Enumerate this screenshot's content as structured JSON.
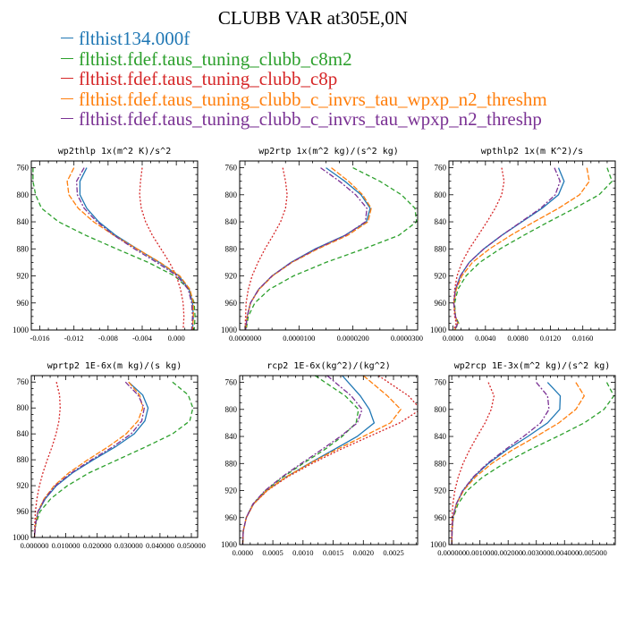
{
  "title": "CLUBB VAR at305E,0N",
  "legend": [
    {
      "name": "flthist134.000f",
      "color": "#1f77b4",
      "dash": ""
    },
    {
      "name": "flthist.fdef.taus_tuning_clubb_c8m2",
      "color": "#2ca02c",
      "dash": "5,3"
    },
    {
      "name": "flthist.fdef.taus_tuning_clubb_c8p",
      "color": "#d62728",
      "dash": "2,2"
    },
    {
      "name": "flthist.fdef.taus_tuning_clubb_c_invrs_tau_wpxp_n2_threshm",
      "color": "#ff7f0e",
      "dash": "6,2"
    },
    {
      "name": "flthist.fdef.taus_tuning_clubb_c_invrs_tau_wpxp_n2_threshp",
      "color": "#7b3294",
      "dash": "6,2,2,2"
    }
  ],
  "chart_data": [
    {
      "type": "line",
      "title": "wp2thlp   1x(m^2 K)/s^2",
      "xlim": [
        -0.017,
        0.0025
      ],
      "xticks": [
        -0.016,
        -0.012,
        -0.008,
        -0.004,
        0.0
      ],
      "xtick_labels": [
        "-0.016",
        "-0.012",
        "-0.008",
        "-0.004",
        "0.000"
      ],
      "ylim": [
        750,
        1000
      ],
      "yticks": [
        760,
        800,
        840,
        880,
        920,
        960,
        1000
      ],
      "y": [
        760,
        780,
        800,
        820,
        840,
        860,
        880,
        900,
        920,
        940,
        960,
        980,
        1000
      ],
      "series": [
        {
          "values": [
            -0.0105,
            -0.0113,
            -0.0113,
            -0.0105,
            -0.0091,
            -0.0071,
            -0.0046,
            -0.002,
            0.0003,
            0.0015,
            0.0019,
            0.002,
            0.0019
          ]
        },
        {
          "values": [
            -0.0168,
            -0.0168,
            -0.0165,
            -0.0158,
            -0.0138,
            -0.0106,
            -0.007,
            -0.0033,
            -0.0002,
            0.0015,
            0.0021,
            0.0022,
            0.0021
          ]
        },
        {
          "values": [
            -0.004,
            -0.0042,
            -0.0043,
            -0.0041,
            -0.0036,
            -0.0028,
            -0.0018,
            -0.0008,
            0.0,
            0.0005,
            0.0008,
            0.0009,
            0.0008
          ]
        },
        {
          "values": [
            -0.012,
            -0.0128,
            -0.0126,
            -0.0115,
            -0.0097,
            -0.0073,
            -0.0046,
            -0.0019,
            0.0004,
            0.0016,
            0.002,
            0.002,
            0.0019
          ]
        },
        {
          "values": [
            -0.0108,
            -0.0117,
            -0.0116,
            -0.0108,
            -0.0093,
            -0.0073,
            -0.0049,
            -0.0023,
            0.0001,
            0.0014,
            0.0018,
            0.0019,
            0.0018
          ]
        }
      ]
    },
    {
      "type": "line",
      "title": "wp2rtp   1x(m^2 kg)/(s^2 kg)",
      "xlim": [
        -1e-06,
        3.2e-05
      ],
      "xticks": [
        0.0,
        1e-05,
        2e-05,
        3e-05
      ],
      "xtick_labels": [
        "0.0000000",
        "0.0000100",
        "0.0000200",
        "0.0000300"
      ],
      "ylim": [
        750,
        1000
      ],
      "yticks": [
        760,
        800,
        840,
        880,
        920,
        960,
        1000
      ],
      "y": [
        760,
        780,
        800,
        820,
        840,
        860,
        880,
        900,
        920,
        940,
        960,
        980,
        1000
      ],
      "series": [
        {
          "values": [
            1.5e-05,
            1.85e-05,
            2.15e-05,
            2.32e-05,
            2.25e-05,
            1.85e-05,
            1.3e-05,
            8.5e-06,
            5e-06,
            2.5e-06,
            1e-06,
            4e-07,
            1e-07
          ]
        },
        {
          "values": [
            2e-05,
            2.5e-05,
            2.9e-05,
            3.15e-05,
            3.18e-05,
            2.85e-05,
            2.2e-05,
            1.5e-05,
            9e-06,
            4.5e-06,
            1.8e-06,
            6e-07,
            2e-07
          ]
        },
        {
          "values": [
            7e-06,
            7.5e-06,
            7.8e-06,
            7.5e-06,
            6.6e-06,
            5.2e-06,
            3.7e-06,
            2.4e-06,
            1.3e-06,
            6e-07,
            2e-07,
            1e-07,
            0.0
          ]
        },
        {
          "values": [
            1.6e-05,
            1.92e-05,
            2.18e-05,
            2.34e-05,
            2.28e-05,
            1.9e-05,
            1.35e-05,
            8.7e-06,
            5.1e-06,
            2.6e-06,
            1e-06,
            4e-07,
            1e-07
          ]
        },
        {
          "values": [
            1.4e-05,
            1.75e-05,
            2.05e-05,
            2.26e-05,
            2.23e-05,
            1.86e-05,
            1.32e-05,
            8.6e-06,
            5e-06,
            2.5e-06,
            1e-06,
            4e-07,
            1e-07
          ]
        }
      ]
    },
    {
      "type": "line",
      "title": "wpthlp2   1x(m K^2)/s",
      "xlim": [
        -0.0005,
        0.02
      ],
      "xticks": [
        0.0,
        0.004,
        0.008,
        0.012,
        0.016
      ],
      "xtick_labels": [
        "0.0000",
        "0.0040",
        "0.0080",
        "0.0120",
        "0.0160"
      ],
      "ylim": [
        750,
        1000
      ],
      "yticks": [
        760,
        800,
        840,
        880,
        920,
        960,
        1000
      ],
      "y": [
        760,
        780,
        800,
        820,
        840,
        860,
        880,
        900,
        920,
        940,
        960,
        980,
        990,
        1000
      ],
      "series": [
        {
          "values": [
            0.013,
            0.0137,
            0.013,
            0.011,
            0.0085,
            0.006,
            0.0038,
            0.002,
            0.0009,
            0.0003,
            0.0001,
            0.0003,
            0.0006,
            0.0002
          ]
        },
        {
          "values": [
            0.019,
            0.0196,
            0.018,
            0.015,
            0.0118,
            0.0087,
            0.0058,
            0.0033,
            0.0016,
            0.0006,
            0.0002,
            0.0003,
            0.0007,
            0.0002
          ]
        },
        {
          "values": [
            0.006,
            0.0063,
            0.006,
            0.0052,
            0.0042,
            0.0031,
            0.002,
            0.0011,
            0.0005,
            0.0002,
            0.0001,
            0.0002,
            0.0004,
            0.0001
          ]
        },
        {
          "values": [
            0.0165,
            0.0168,
            0.0156,
            0.013,
            0.01,
            0.0071,
            0.0045,
            0.0024,
            0.0011,
            0.0004,
            0.0001,
            0.0003,
            0.0006,
            0.0002
          ]
        },
        {
          "values": [
            0.0125,
            0.0132,
            0.0126,
            0.0108,
            0.0084,
            0.006,
            0.0038,
            0.002,
            0.0009,
            0.0003,
            0.0001,
            0.0003,
            0.0006,
            0.0002
          ]
        }
      ]
    },
    {
      "type": "line",
      "title": "wprtp2   1E-6x(m kg)/(s kg)",
      "xlim": [
        -0.001,
        0.052
      ],
      "xticks": [
        0.0,
        0.01,
        0.02,
        0.03,
        0.04,
        0.05
      ],
      "xtick_labels": [
        "0.000000",
        "0.010000",
        "0.020000",
        "0.030000",
        "0.040000",
        "0.050000"
      ],
      "ylim": [
        750,
        1000
      ],
      "yticks": [
        760,
        800,
        840,
        880,
        920,
        960,
        1000
      ],
      "y": [
        760,
        780,
        800,
        820,
        840,
        860,
        880,
        900,
        920,
        940,
        960,
        980,
        1000
      ],
      "series": [
        {
          "values": [
            0.03,
            0.0345,
            0.0362,
            0.0352,
            0.0318,
            0.0258,
            0.0188,
            0.0122,
            0.007,
            0.0035,
            0.0012,
            0.0003,
            0.0
          ]
        },
        {
          "values": [
            0.044,
            0.049,
            0.0505,
            0.0495,
            0.044,
            0.0355,
            0.0265,
            0.0175,
            0.0105,
            0.0052,
            0.0018,
            0.0004,
            0.0
          ]
        },
        {
          "values": [
            0.007,
            0.008,
            0.0082,
            0.0078,
            0.0069,
            0.0056,
            0.0041,
            0.0027,
            0.0016,
            0.0008,
            0.0003,
            0.0001,
            0.0
          ]
        },
        {
          "values": [
            0.03,
            0.0335,
            0.0345,
            0.033,
            0.0292,
            0.0235,
            0.017,
            0.011,
            0.0063,
            0.0031,
            0.0011,
            0.0003,
            0.0
          ]
        },
        {
          "values": [
            0.029,
            0.033,
            0.035,
            0.0342,
            0.0308,
            0.025,
            0.0182,
            0.0118,
            0.0067,
            0.0033,
            0.0011,
            0.0003,
            0.0
          ]
        }
      ]
    },
    {
      "type": "line",
      "title": "rcp2   1E-6x(kg^2)/(kg^2)",
      "xlim": [
        -5e-05,
        0.0029
      ],
      "xticks": [
        0.0,
        0.0005,
        0.001,
        0.0015,
        0.002,
        0.0025
      ],
      "xtick_labels": [
        "0.0000",
        "0.0005",
        "0.0010",
        "0.0015",
        "0.0020",
        "0.0025"
      ],
      "ylim": [
        750,
        1000
      ],
      "yticks": [
        760,
        800,
        840,
        880,
        920,
        960,
        1000
      ],
      "y": [
        750,
        780,
        800,
        820,
        840,
        860,
        880,
        900,
        920,
        940,
        960,
        980,
        1000
      ],
      "series": [
        {
          "values": [
            0.00165,
            0.00195,
            0.0021,
            0.00218,
            0.0019,
            0.0015,
            0.0011,
            0.00072,
            0.0004,
            0.00018,
            6e-05,
            1e-05,
            0.0
          ]
        },
        {
          "values": [
            0.0012,
            0.0017,
            0.00192,
            0.00188,
            0.00165,
            0.00135,
            0.001,
            0.00067,
            0.00038,
            0.00017,
            6e-05,
            1e-05,
            0.0
          ]
        },
        {
          "values": [
            0.00225,
            0.00275,
            0.00295,
            0.0026,
            0.0021,
            0.0016,
            0.00115,
            0.00074,
            0.00041,
            0.00018,
            6e-05,
            1e-05,
            0.0
          ]
        },
        {
          "values": [
            0.002,
            0.0024,
            0.00262,
            0.00245,
            0.002,
            0.00154,
            0.00111,
            0.00072,
            0.0004,
            0.00018,
            6e-05,
            1e-05,
            0.0
          ]
        },
        {
          "values": [
            0.0014,
            0.0018,
            0.00198,
            0.0019,
            0.00162,
            0.0013,
            0.00097,
            0.00065,
            0.00037,
            0.00017,
            6e-05,
            1e-05,
            0.0
          ]
        }
      ]
    },
    {
      "type": "line",
      "title": "wp2rcp   1E-3x(m^2 kg)/(s^2 kg)",
      "xlim": [
        -0.0001,
        0.0058
      ],
      "xticks": [
        0.0,
        0.001,
        0.002,
        0.003,
        0.004,
        0.005
      ],
      "xtick_labels": [
        "0.000000",
        "0.001000",
        "0.002000",
        "0.003000",
        "0.004000",
        "0.005000"
      ],
      "ylim": [
        750,
        1000
      ],
      "yticks": [
        760,
        800,
        840,
        880,
        920,
        960,
        1000
      ],
      "y": [
        760,
        780,
        800,
        820,
        840,
        860,
        880,
        900,
        920,
        940,
        960,
        980,
        1000
      ],
      "series": [
        {
          "values": [
            0.0034,
            0.00385,
            0.00383,
            0.0034,
            0.0027,
            0.00195,
            0.0013,
            0.00078,
            0.0004,
            0.00016,
            4e-05,
            1e-05,
            0.0
          ]
        },
        {
          "values": [
            0.0055,
            0.00575,
            0.0054,
            0.0047,
            0.00375,
            0.00275,
            0.00185,
            0.0011,
            0.00055,
            0.00022,
            6e-05,
            1e-05,
            0.0
          ]
        },
        {
          "values": [
            0.0013,
            0.0015,
            0.0014,
            0.00118,
            0.0009,
            0.00063,
            0.0004,
            0.00023,
            0.00011,
            4e-05,
            1e-05,
            0.0,
            0.0
          ]
        },
        {
          "values": [
            0.0044,
            0.0047,
            0.0044,
            0.0038,
            0.003,
            0.00215,
            0.00142,
            0.00084,
            0.00042,
            0.00017,
            5e-05,
            1e-05,
            0.0
          ]
        },
        {
          "values": [
            0.003,
            0.0034,
            0.00345,
            0.00315,
            0.00255,
            0.00188,
            0.00126,
            0.00076,
            0.00039,
            0.00016,
            4e-05,
            1e-05,
            0.0
          ]
        }
      ]
    }
  ]
}
